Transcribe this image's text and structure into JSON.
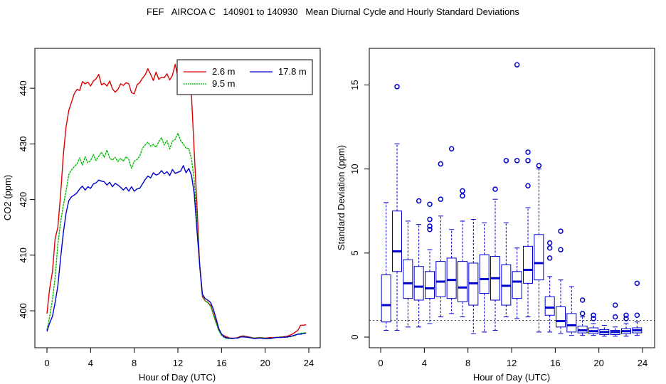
{
  "title": "FEF   AIRCOA C   140901 to 140930   Mean Diurnal Cycle and Hourly Standard Deviations",
  "colors": {
    "red": "#dd0000",
    "green": "#00bb00",
    "blue": "#0000cc",
    "box": "#0000cc",
    "axis": "#000000"
  },
  "chart_data": [
    {
      "type": "line",
      "title": "",
      "xlabel": "Hour of Day (UTC)",
      "ylabel": "CO2 (ppm)",
      "xlim": [
        0,
        24
      ],
      "ylim": [
        394,
        445
      ],
      "xticks": [
        0,
        4,
        8,
        12,
        16,
        20,
        24
      ],
      "yticks": [
        400,
        410,
        420,
        430,
        440
      ],
      "legend": {
        "position": "top-right",
        "entries": [
          "2.6 m",
          "9.5 m",
          "17.8 m"
        ]
      },
      "series": [
        {
          "name": "2.6 m",
          "color": "#dd0000",
          "x": [
            0,
            0.25,
            0.5,
            0.75,
            1,
            1.25,
            1.5,
            1.75,
            2,
            2.25,
            2.5,
            2.75,
            3,
            3.25,
            3.5,
            3.75,
            4,
            4.25,
            4.5,
            4.75,
            5,
            5.25,
            5.5,
            5.75,
            6,
            6.25,
            6.5,
            6.75,
            7,
            7.25,
            7.5,
            7.75,
            8,
            8.25,
            8.5,
            8.75,
            9,
            9.25,
            9.5,
            9.75,
            10,
            10.25,
            10.5,
            10.75,
            11,
            11.25,
            11.5,
            11.75,
            12,
            12.25,
            12.5,
            12.75,
            13,
            13.25,
            13.5,
            13.75,
            14,
            14.25,
            14.5,
            14.75,
            15,
            15.25,
            15.5,
            15.75,
            16,
            16.25,
            16.5,
            16.75,
            17,
            17.25,
            17.5,
            17.75,
            18,
            18.5,
            19,
            19.5,
            20,
            20.5,
            21,
            21.5,
            22,
            22.5,
            23,
            23.25,
            23.5,
            23.75
          ],
          "y": [
            399.5,
            404,
            407,
            413,
            415,
            421,
            428,
            433,
            436,
            437.5,
            439,
            439.8,
            439.6,
            441.2,
            440.8,
            441.1,
            440.4,
            441.3,
            441.7,
            442.5,
            440.6,
            440.9,
            440.4,
            441.3,
            439.9,
            439.3,
            439.8,
            440.8,
            440.5,
            441.0,
            440.8,
            439.2,
            439.0,
            440.6,
            441.0,
            441.8,
            442.4,
            443.5,
            442.5,
            441.4,
            442.9,
            441.6,
            442.0,
            441.9,
            442.6,
            441.5,
            442.3,
            444.3,
            442.1,
            443.0,
            441.0,
            440.2,
            441.5,
            438.5,
            428.5,
            419,
            408,
            402.5,
            401.8,
            401.5,
            401.0,
            399.5,
            398.0,
            396.6,
            395.8,
            395.5,
            395.3,
            395.1,
            395.1,
            395.1,
            395.2,
            395.4,
            395.5,
            395.3,
            395.1,
            395.2,
            395.1,
            395.2,
            395.2,
            395.3,
            395.4,
            395.8,
            396.5,
            397.4,
            397.4,
            397.5
          ]
        },
        {
          "name": "9.5 m",
          "color": "#00bb00",
          "x": [
            0,
            0.25,
            0.5,
            0.75,
            1,
            1.25,
            1.5,
            1.75,
            2,
            2.25,
            2.5,
            2.75,
            3,
            3.25,
            3.5,
            3.75,
            4,
            4.25,
            4.5,
            4.75,
            5,
            5.25,
            5.5,
            5.75,
            6,
            6.25,
            6.5,
            6.75,
            7,
            7.25,
            7.5,
            7.75,
            8,
            8.25,
            8.5,
            8.75,
            9,
            9.25,
            9.5,
            9.75,
            10,
            10.25,
            10.5,
            10.75,
            11,
            11.25,
            11.5,
            11.75,
            12,
            12.25,
            12.5,
            12.75,
            13,
            13.25,
            13.5,
            13.75,
            14,
            14.25,
            14.5,
            14.75,
            15,
            15.25,
            15.5,
            15.75,
            16,
            16.25,
            16.5,
            16.75,
            17,
            17.25,
            17.5,
            17.75,
            18,
            18.5,
            19,
            19.5,
            20,
            20.5,
            21,
            21.5,
            22,
            22.5,
            23,
            23.25,
            23.5,
            23.75
          ],
          "y": [
            396.5,
            399,
            402,
            406,
            412,
            416,
            419,
            421.5,
            424.5,
            425.3,
            425.9,
            426.4,
            427.5,
            426.2,
            427.7,
            426.6,
            427.0,
            428.1,
            427.0,
            427.8,
            428.5,
            427.6,
            428.9,
            427.4,
            427.1,
            427.6,
            426.8,
            427.4,
            426.9,
            427.7,
            427.2,
            425.6,
            426.9,
            427.2,
            427.8,
            429.2,
            429.8,
            430.3,
            429.6,
            429.9,
            429.4,
            430.4,
            431.1,
            429.8,
            430.6,
            429.1,
            430.5,
            430.8,
            431.9,
            430.6,
            430.0,
            429.2,
            429.2,
            427.2,
            423.5,
            416,
            408,
            402.8,
            401.8,
            401.4,
            400.8,
            399.3,
            397.8,
            396.4,
            395.6,
            395.2,
            395.0,
            395.0,
            395.0,
            395.1,
            395.1,
            395.3,
            395.4,
            395.2,
            395.1,
            395.2,
            395.1,
            395.1,
            395.2,
            395.3,
            395.2,
            395.4,
            395.8,
            396.0,
            396.0,
            396.1
          ]
        },
        {
          "name": "17.8 m",
          "color": "#0000cc",
          "x": [
            0,
            0.25,
            0.5,
            0.75,
            1,
            1.25,
            1.5,
            1.75,
            2,
            2.25,
            2.5,
            2.75,
            3,
            3.25,
            3.5,
            3.75,
            4,
            4.25,
            4.5,
            4.75,
            5,
            5.25,
            5.5,
            5.75,
            6,
            6.25,
            6.5,
            6.75,
            7,
            7.25,
            7.5,
            7.75,
            8,
            8.25,
            8.5,
            8.75,
            9,
            9.25,
            9.5,
            9.75,
            10,
            10.25,
            10.5,
            10.75,
            11,
            11.25,
            11.5,
            11.75,
            12,
            12.25,
            12.5,
            12.75,
            13,
            13.25,
            13.5,
            13.75,
            14,
            14.25,
            14.5,
            14.75,
            15,
            15.25,
            15.5,
            15.75,
            16,
            16.25,
            16.5,
            16.75,
            17,
            17.25,
            17.5,
            17.75,
            18,
            18.5,
            19,
            19.5,
            20,
            20.5,
            21,
            21.5,
            22,
            22.5,
            23,
            23.25,
            23.5,
            23.75
          ],
          "y": [
            396.3,
            397.8,
            399,
            401.5,
            404.5,
            409.5,
            414,
            417.5,
            419.8,
            420.5,
            420.8,
            421.2,
            421.9,
            422.4,
            421.7,
            422.3,
            422.0,
            422.8,
            423.0,
            423.5,
            423.3,
            423.2,
            422.6,
            423.1,
            422.3,
            422.9,
            422.6,
            422.2,
            421.7,
            422.2,
            421.5,
            422.3,
            421.5,
            421.9,
            422.0,
            422.8,
            423.6,
            424.2,
            423.9,
            424.8,
            424.4,
            424.6,
            425.2,
            424.6,
            425.0,
            424.3,
            425.4,
            424.7,
            424.9,
            425.1,
            426.1,
            424.8,
            425.6,
            424.3,
            421.0,
            414.5,
            408.2,
            403.0,
            402.2,
            401.9,
            401.5,
            400.3,
            398.6,
            396.8,
            395.8,
            395.3,
            395.1,
            395.1,
            395.0,
            395.1,
            395.1,
            395.3,
            395.3,
            395.2,
            395.0,
            395.1,
            395.0,
            395.0,
            395.2,
            395.2,
            395.3,
            395.5,
            395.8,
            395.8,
            395.9,
            396.0
          ]
        }
      ]
    },
    {
      "type": "box",
      "title": "",
      "xlabel": "Hour of Day (UTC)",
      "ylabel": "Standard Deviation (ppm)",
      "xlim": [
        0,
        24
      ],
      "ylim": [
        0,
        16.5
      ],
      "xticks": [
        0,
        4,
        8,
        12,
        16,
        20,
        24
      ],
      "yticks": [
        0,
        5,
        10,
        15
      ],
      "reference_line": 1,
      "boxes": [
        {
          "hour": 0.5,
          "min": 0.4,
          "q1": 0.9,
          "median": 1.9,
          "q3": 3.7,
          "max": 8.0,
          "outliers": []
        },
        {
          "hour": 1.5,
          "min": 0.4,
          "q1": 3.9,
          "median": 5.1,
          "q3": 7.5,
          "max": 11.5,
          "outliers": [
            14.9
          ]
        },
        {
          "hour": 2.5,
          "min": 0.6,
          "q1": 2.3,
          "median": 3.2,
          "q3": 4.6,
          "max": 6.9,
          "outliers": []
        },
        {
          "hour": 3.5,
          "min": 0.6,
          "q1": 2.2,
          "median": 3.0,
          "q3": 4.2,
          "max": 6.7,
          "outliers": [
            8.1
          ]
        },
        {
          "hour": 4.5,
          "min": 0.8,
          "q1": 2.3,
          "median": 2.9,
          "q3": 3.9,
          "max": 5.2,
          "outliers": [
            6.4,
            6.6,
            7.0,
            7.9
          ]
        },
        {
          "hour": 5.5,
          "min": 1.2,
          "q1": 2.4,
          "median": 3.3,
          "q3": 4.5,
          "max": 7.2,
          "outliers": [
            8.2,
            10.3
          ]
        },
        {
          "hour": 6.5,
          "min": 1.4,
          "q1": 2.3,
          "median": 3.4,
          "q3": 4.7,
          "max": 6.4,
          "outliers": [
            11.2
          ]
        },
        {
          "hour": 7.5,
          "min": 1.2,
          "q1": 2.1,
          "median": 2.95,
          "q3": 4.5,
          "max": 6.9,
          "outliers": [
            8.4,
            8.7
          ]
        },
        {
          "hour": 8.5,
          "min": 0.2,
          "q1": 1.9,
          "median": 3.2,
          "q3": 4.4,
          "max": 7.0,
          "outliers": []
        },
        {
          "hour": 9.5,
          "min": 0.3,
          "q1": 2.6,
          "median": 3.45,
          "q3": 4.9,
          "max": 6.8,
          "outliers": []
        },
        {
          "hour": 10.5,
          "min": 0.4,
          "q1": 2.2,
          "median": 3.5,
          "q3": 4.8,
          "max": 8.2,
          "outliers": [
            8.8
          ]
        },
        {
          "hour": 11.5,
          "min": 1.2,
          "q1": 1.9,
          "median": 3.05,
          "q3": 4.3,
          "max": 6.8,
          "outliers": [
            10.5
          ]
        },
        {
          "hour": 12.5,
          "min": 1.1,
          "q1": 2.3,
          "median": 3.3,
          "q3": 3.9,
          "max": 5.3,
          "outliers": [
            10.5,
            16.2
          ]
        },
        {
          "hour": 13.5,
          "min": 1.2,
          "q1": 3.2,
          "median": 4.0,
          "q3": 5.4,
          "max": 7.7,
          "outliers": [
            9.0,
            10.5,
            11.0
          ]
        },
        {
          "hour": 14.5,
          "min": 0.3,
          "q1": 3.4,
          "median": 4.4,
          "q3": 6.1,
          "max": 10.0,
          "outliers": [
            10.2
          ]
        },
        {
          "hour": 15.5,
          "min": 0.3,
          "q1": 1.3,
          "median": 1.75,
          "q3": 2.4,
          "max": 3.6,
          "outliers": [
            4.7,
            5.3,
            5.6
          ]
        },
        {
          "hour": 16.5,
          "min": 0.2,
          "q1": 0.6,
          "median": 0.95,
          "q3": 1.8,
          "max": 3.4,
          "outliers": [
            5.2,
            6.3
          ]
        },
        {
          "hour": 17.5,
          "min": 0.1,
          "q1": 0.3,
          "median": 0.7,
          "q3": 1.4,
          "max": 3.0,
          "outliers": []
        },
        {
          "hour": 18.5,
          "min": 0.1,
          "q1": 0.25,
          "median": 0.4,
          "q3": 0.65,
          "max": 1.2,
          "outliers": [
            1.4,
            2.2
          ]
        },
        {
          "hour": 19.5,
          "min": 0.1,
          "q1": 0.2,
          "median": 0.35,
          "q3": 0.55,
          "max": 0.8,
          "outliers": [
            1.1,
            1.3
          ]
        },
        {
          "hour": 20.5,
          "min": 0.05,
          "q1": 0.15,
          "median": 0.3,
          "q3": 0.45,
          "max": 0.7,
          "outliers": []
        },
        {
          "hour": 21.5,
          "min": 0.05,
          "q1": 0.15,
          "median": 0.3,
          "q3": 0.4,
          "max": 0.6,
          "outliers": [
            1.2,
            1.9
          ]
        },
        {
          "hour": 22.5,
          "min": 0.05,
          "q1": 0.2,
          "median": 0.35,
          "q3": 0.5,
          "max": 0.8,
          "outliers": [
            1.1,
            1.3
          ]
        },
        {
          "hour": 23.5,
          "min": 0.1,
          "q1": 0.25,
          "median": 0.4,
          "q3": 0.55,
          "max": 0.9,
          "outliers": [
            1.3,
            3.2
          ]
        }
      ]
    }
  ]
}
